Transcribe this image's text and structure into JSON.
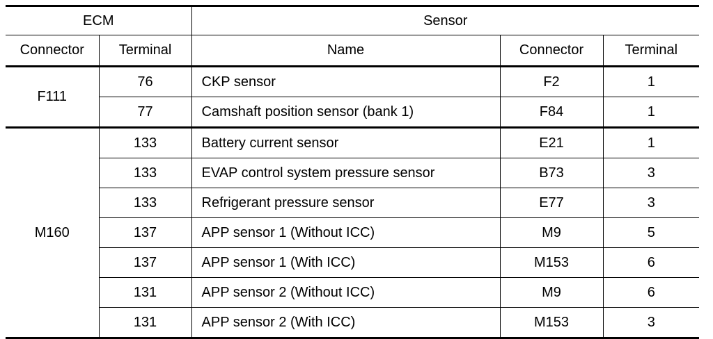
{
  "header": {
    "ecm": "ECM",
    "sensor": "Sensor",
    "ecm_connector": "Connector",
    "ecm_terminal": "Terminal",
    "sensor_name": "Name",
    "sensor_connector": "Connector",
    "sensor_terminal": "Terminal"
  },
  "groups": [
    {
      "ecm_connector": "F111",
      "rows": [
        {
          "ecm_terminal": "76",
          "name": "CKP sensor",
          "sensor_connector": "F2",
          "sensor_terminal": "1"
        },
        {
          "ecm_terminal": "77",
          "name": "Camshaft position sensor (bank 1)",
          "sensor_connector": "F84",
          "sensor_terminal": "1"
        }
      ]
    },
    {
      "ecm_connector": "M160",
      "rows": [
        {
          "ecm_terminal": "133",
          "name": "Battery current sensor",
          "sensor_connector": "E21",
          "sensor_terminal": "1"
        },
        {
          "ecm_terminal": "133",
          "name": "EVAP control system pressure sensor",
          "sensor_connector": "B73",
          "sensor_terminal": "3"
        },
        {
          "ecm_terminal": "133",
          "name": "Refrigerant pressure sensor",
          "sensor_connector": "E77",
          "sensor_terminal": "3"
        },
        {
          "ecm_terminal": "137",
          "name": "APP sensor 1 (Without ICC)",
          "sensor_connector": "M9",
          "sensor_terminal": "5"
        },
        {
          "ecm_terminal": "137",
          "name": "APP sensor 1 (With ICC)",
          "sensor_connector": "M153",
          "sensor_terminal": "6"
        },
        {
          "ecm_terminal": "131",
          "name": "APP sensor 2 (Without ICC)",
          "sensor_connector": "M9",
          "sensor_terminal": "6"
        },
        {
          "ecm_terminal": "131",
          "name": "APP sensor 2 (With ICC)",
          "sensor_connector": "M153",
          "sensor_terminal": "3"
        }
      ]
    }
  ]
}
